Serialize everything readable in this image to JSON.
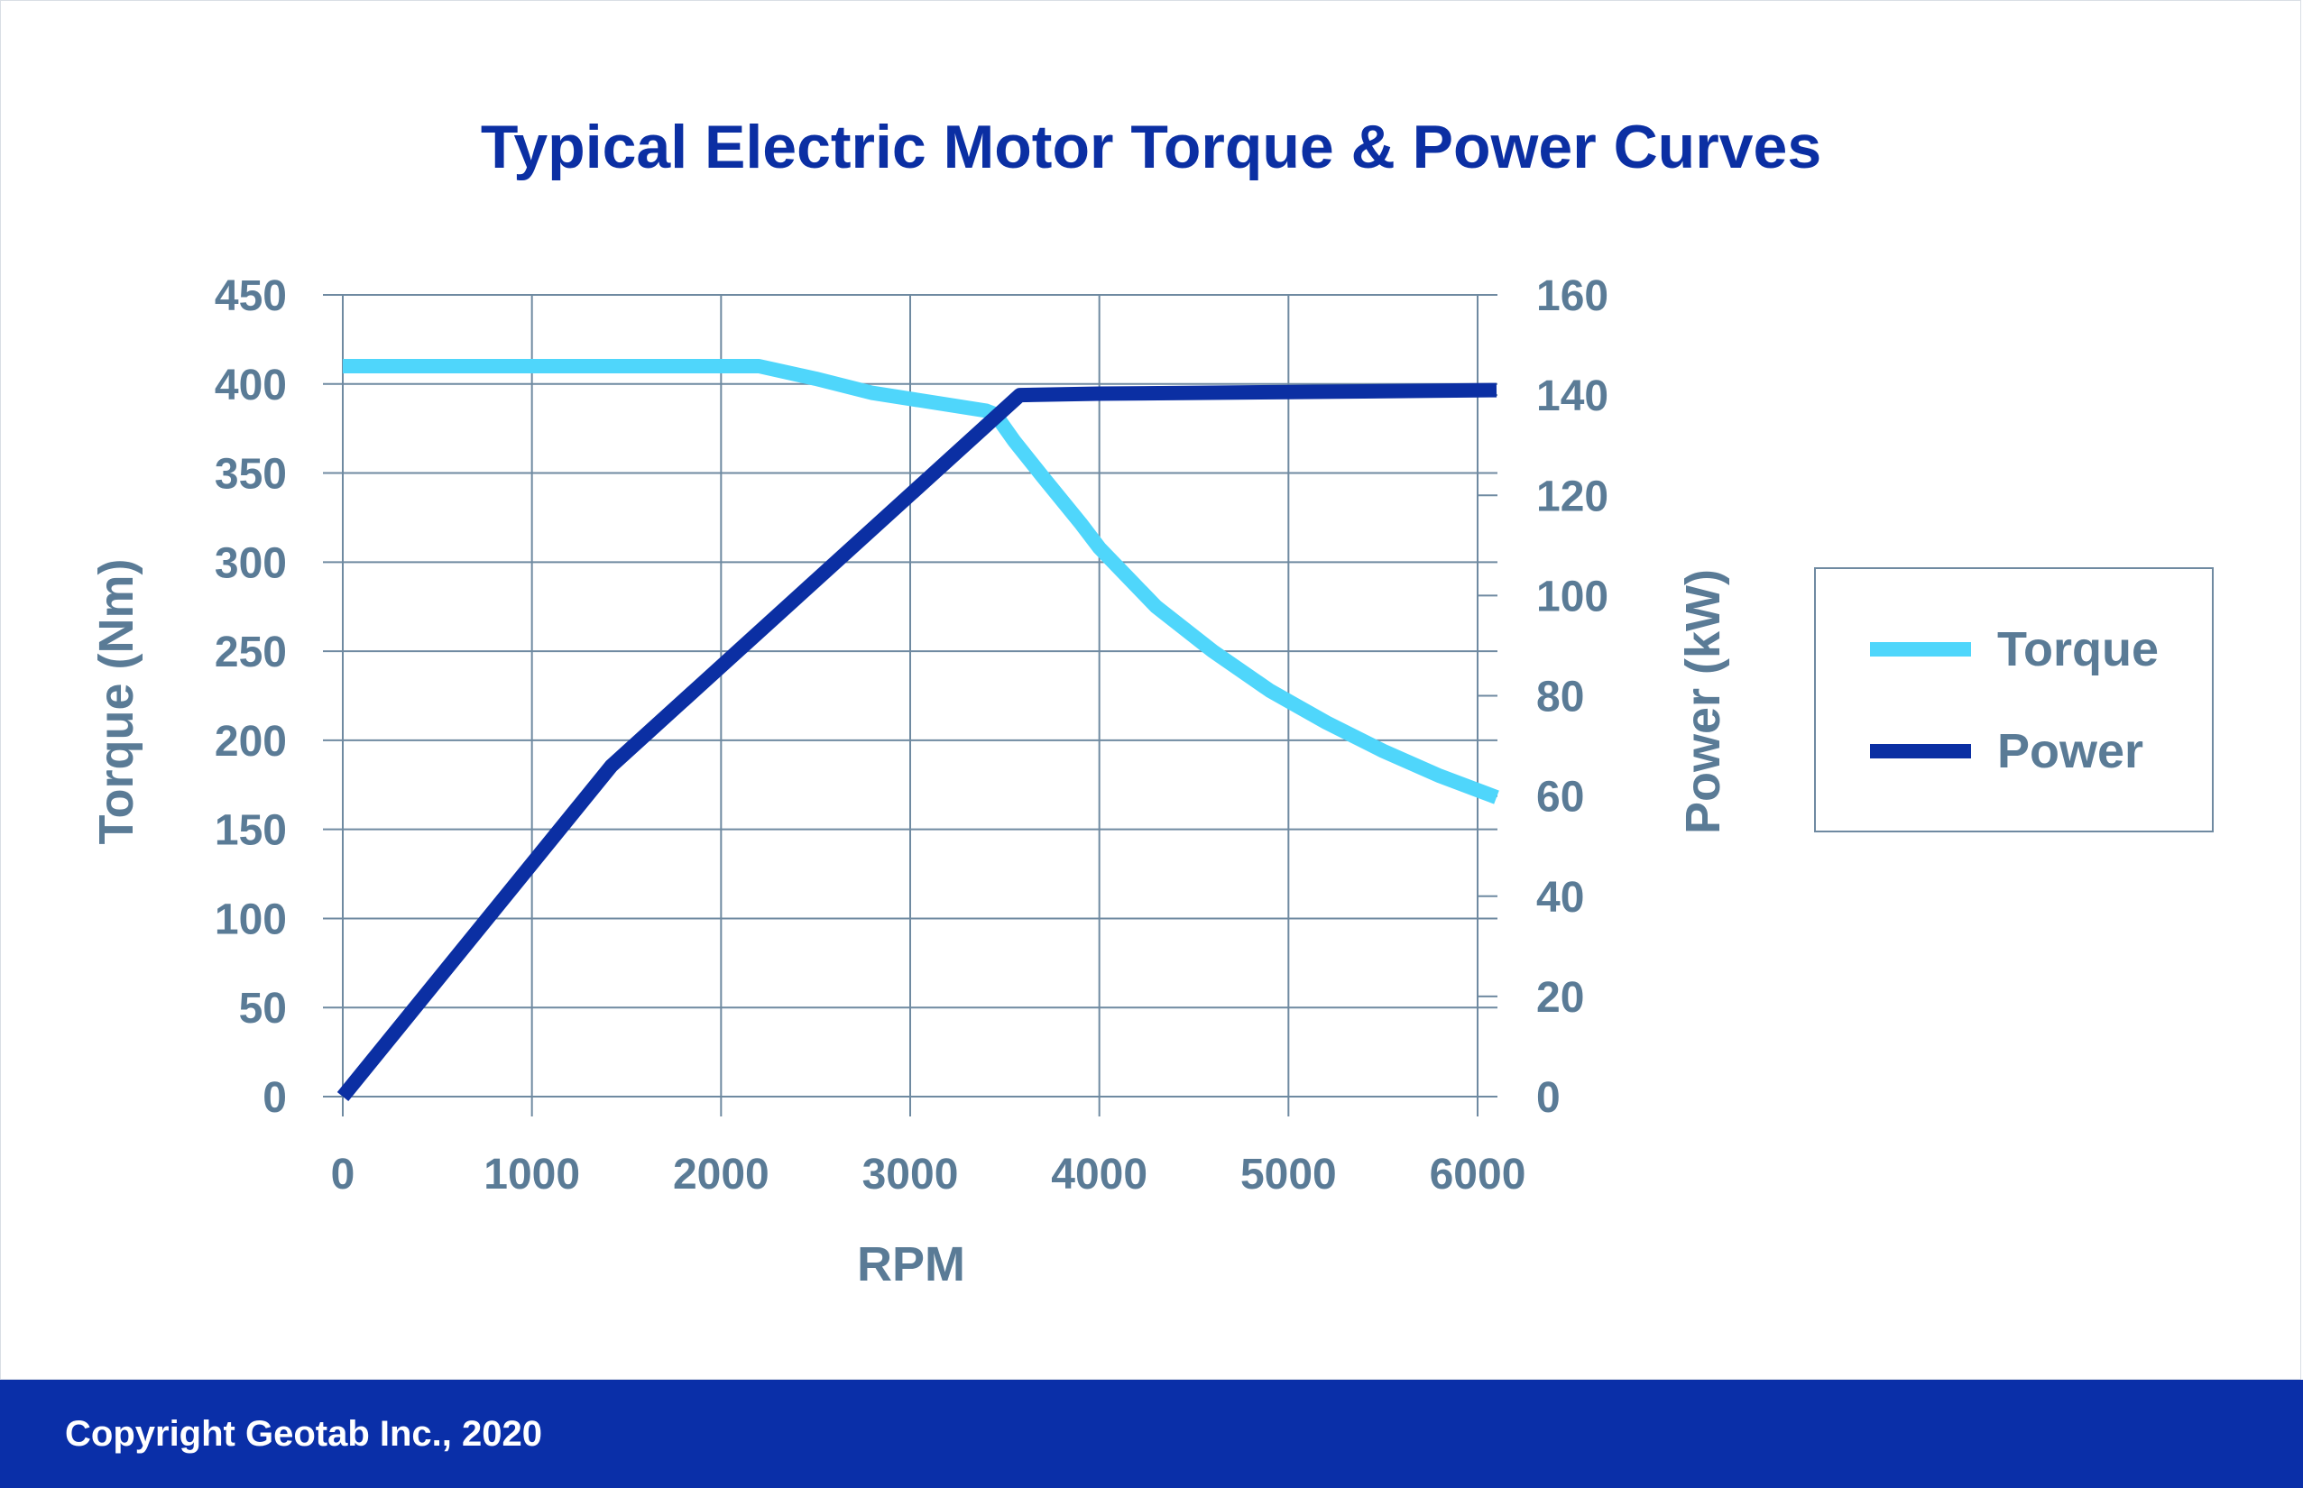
{
  "chart_data": {
    "type": "line",
    "title": "Typical Electric Motor Torque & Power Curves",
    "xlabel": "RPM",
    "ylabel": "Torque (Nm)",
    "y2label": "Power (kW)",
    "xlim": [
      0,
      6000
    ],
    "ylim": [
      0,
      450
    ],
    "y2lim": [
      0,
      160
    ],
    "xticks": [
      0,
      1000,
      2000,
      3000,
      4000,
      5000,
      6000
    ],
    "yticks": [
      0,
      50,
      100,
      150,
      200,
      250,
      300,
      350,
      400,
      450
    ],
    "y2ticks": [
      0,
      20,
      40,
      60,
      80,
      100,
      120,
      140,
      160
    ],
    "grid": true,
    "legend_position": "right",
    "series": [
      {
        "name": "Torque",
        "axis": "left",
        "color": "#4fd6fb",
        "x": [
          0,
          2200,
          2500,
          2800,
          3100,
          3400,
          3450,
          3550,
          3700,
          3900,
          4000,
          4300,
          4600,
          4900,
          5200,
          5500,
          5800,
          6100
        ],
        "y": [
          410,
          410,
          403,
          395,
          390,
          385,
          383,
          368,
          348,
          322,
          308,
          275,
          250,
          228,
          210,
          194,
          180,
          168
        ]
      },
      {
        "name": "Power",
        "axis": "right",
        "color": "#0b2fa3",
        "x": [
          0,
          1420,
          3580,
          4000,
          5000,
          6100
        ],
        "y": [
          0,
          66,
          140,
          140.3,
          140.6,
          141
        ]
      }
    ]
  },
  "footer": {
    "copyright": "Copyright Geotab Inc., 2020",
    "background": "#0a2fa8"
  }
}
